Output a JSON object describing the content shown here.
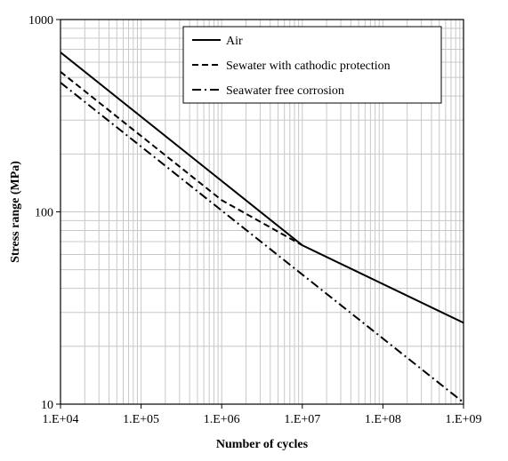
{
  "chart_data": {
    "type": "line",
    "title": "",
    "xlabel": "Number of cycles",
    "ylabel": "Stress range (MPa)",
    "x_scale": "log",
    "y_scale": "log",
    "xlim": [
      10000,
      1000000000
    ],
    "ylim": [
      10,
      1000
    ],
    "x_tick_labels": [
      "1.E+04",
      "1.E+05",
      "1.E+06",
      "1.E+07",
      "1.E+08",
      "1.E+09"
    ],
    "y_tick_labels": [
      "10",
      "100",
      "1000"
    ],
    "grid": true,
    "legend_position": "top-right",
    "series": [
      {
        "name": "Air",
        "line_style": "solid",
        "color": "#000000",
        "points": [
          [
            10000,
            675
          ],
          [
            10000000,
            67
          ],
          [
            1000000000,
            26.5
          ]
        ]
      },
      {
        "name": "Sewater with cathodic protection",
        "line_style": "dashed",
        "color": "#000000",
        "points": [
          [
            10000,
            535
          ],
          [
            1000000,
            115
          ],
          [
            10000000,
            67
          ]
        ]
      },
      {
        "name": "Seawater free corrosion",
        "line_style": "dash-dot",
        "color": "#000000",
        "points": [
          [
            10000,
            470
          ],
          [
            1000000000,
            10.2
          ]
        ]
      }
    ]
  }
}
